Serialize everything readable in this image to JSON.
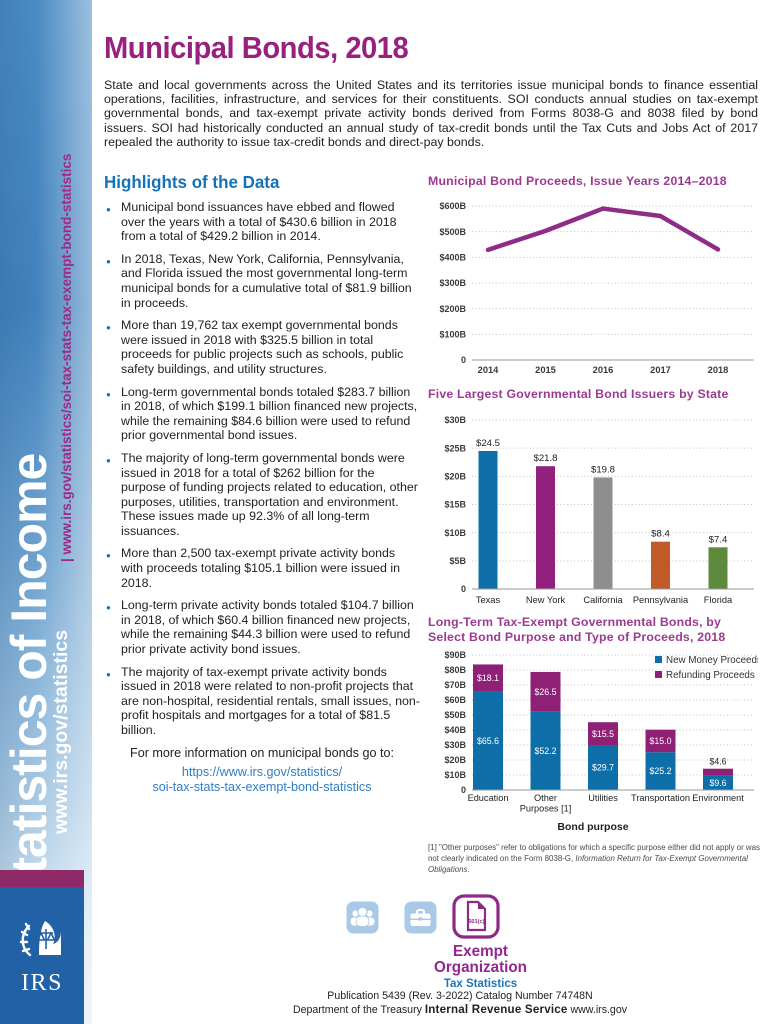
{
  "colors": {
    "title_purple": "#982180",
    "heading_blue": "#1273ba",
    "link_blue": "#2e7ec6",
    "chart_title_purple": "#9c3a92",
    "sidebar_url_purple": "#9c2a86",
    "irs_block_blue": "#2161a6",
    "stripe_maroon": "#8e2a68",
    "icon_light_blue": "#a9c9e6"
  },
  "sidebar": {
    "title": "Statistics of Income",
    "url_primary": "www.irs.gov/statistics",
    "url_secondary": "| www.irs.gov/statistics/soi-tax-stats-tax-exempt-bond-statistics",
    "irs_logo_text": "IRS"
  },
  "header": {
    "title": "Municipal Bonds, 2018",
    "intro": "State and local governments across the United States and its territories issue municipal bonds to finance essential operations, facilities, infrastructure, and services for their constituents.  SOI conducts annual studies on tax-exempt governmental bonds, and tax-exempt private activity bonds derived from Forms 8038-G and 8038 filed by bond issuers. SOI had historically conducted an annual study of tax-credit bonds until the Tax Cuts and Jobs Act of 2017 repealed the authority to issue tax-credit bonds and direct-pay bonds."
  },
  "highlights": {
    "heading": "Highlights of the Data",
    "bullets": [
      "Municipal bond issuances have ebbed and flowed over the years with a total of $430.6 billion in 2018 from a total of $429.2 billion in 2014.",
      "In 2018, Texas, New York, California, Pennsylvania, and Florida issued the most governmental long-term municipal bonds for a cumulative total of $81.9 billion in proceeds.",
      "More than 19,762 tax exempt governmental bonds were issued in 2018 with $325.5 billion in total proceeds for public projects such as schools, public safety buildings, and utility structures.",
      "Long-term governmental bonds totaled $283.7 billion in 2018, of which $199.1 billion financed new projects, while the remaining $84.6 billion were used to refund prior governmental bond issues.",
      "The majority of long-term governmental bonds were issued in 2018 for a total of $262 billion for the purpose of funding projects related to education, other purposes, utilities, transportation and environment. These issues made up 92.3% of all long-term issuances.",
      "More than 2,500 tax-exempt private activity bonds with proceeds totaling $105.1 billion were issued in 2018.",
      "Long-term private activity bonds totaled $104.7 billion in 2018, of which $60.4 billion financed new projects, while the remaining $44.3 billion were used to refund prior private activity bond issues.",
      "The majority of tax-exempt private activity bonds issued in 2018 were related to non-profit projects that are non-hospital, residential rentals, small issues, non-profit hospitals and mortgages for a total of $81.5 billion."
    ],
    "more_info": "For more information on municipal bonds go to:",
    "link_line1": "https://www.irs.gov/statistics/",
    "link_line2": "soi-tax-stats-tax-exempt-bond-statistics"
  },
  "chart_data": [
    {
      "type": "line",
      "title": "Municipal Bond Proceeds, Issue Years 2014–2018",
      "x": [
        "2014",
        "2015",
        "2016",
        "2017",
        "2018"
      ],
      "values": [
        429.2,
        503,
        590,
        561,
        430.6
      ],
      "ylim": [
        0,
        600
      ],
      "ytick_labels": [
        "0",
        "$100B",
        "$200B",
        "$300B",
        "$400B",
        "$500B",
        "$600B"
      ],
      "line_color": "#8e2c87",
      "grid": true,
      "legend_position": "none"
    },
    {
      "type": "bar",
      "title": "Five Largest Governmental Bond Issuers by State",
      "categories": [
        "Texas",
        "New York",
        "California",
        "Pennsylvania",
        "Florida"
      ],
      "values": [
        24.5,
        21.8,
        19.8,
        8.4,
        7.4
      ],
      "value_labels": [
        "$24.5",
        "$21.8",
        "$19.8",
        "$8.4",
        "$7.4"
      ],
      "bar_colors": [
        "#0e6fa8",
        "#92217e",
        "#8e8e8e",
        "#c05a28",
        "#5d8a3d"
      ],
      "ylim": [
        0,
        30
      ],
      "ytick_labels": [
        "0",
        "$5B",
        "$10B",
        "$15B",
        "$20B",
        "$25B",
        "$30B"
      ],
      "grid": true
    },
    {
      "type": "stacked_bar",
      "title_lines": [
        "Long-Term Tax-Exempt Governmental Bonds, by",
        "Select Bond Purpose and Type of Proceeds, 2018"
      ],
      "categories": [
        [
          "Education"
        ],
        [
          "Other",
          "Purposes [1]"
        ],
        [
          "Utilities"
        ],
        [
          "Transportation"
        ],
        [
          "Environment"
        ]
      ],
      "series": [
        {
          "name": "New Money Proceeds",
          "color": "#0e6fa8",
          "values": [
            65.6,
            52.2,
            29.7,
            25.2,
            9.6
          ],
          "labels": [
            "$65.6",
            "$52.2",
            "$29.7",
            "$25.2",
            "$9.6"
          ]
        },
        {
          "name": "Refunding Proceeds",
          "color": "#8e2176",
          "values": [
            18.1,
            26.5,
            15.5,
            15.0,
            4.6
          ],
          "labels": [
            "$18.1",
            "$26.5",
            "$15.5",
            "$15.0",
            "$4.6"
          ]
        }
      ],
      "ylim": [
        0,
        90
      ],
      "ytick_labels": [
        "0",
        "$10B",
        "$20B",
        "$30B",
        "$40B",
        "$50B",
        "$60B",
        "$70B",
        "$80B",
        "$90B"
      ],
      "xlabel": "Bond purpose",
      "legend_position": "top-right",
      "grid": true
    }
  ],
  "footnote": {
    "prefix": "[1] \"Other purposes\" refer to obligations for which a specific purpose either did not apply or was not clearly indicated on the Form 8038-G, ",
    "italic": "Information Return for Tax-Exempt Governmental Obligations",
    "suffix": "."
  },
  "footer": {
    "doc_badge": "501(c)",
    "exempt_line1": "Exempt",
    "exempt_line2": "Organization",
    "tax_statistics": "Tax Statistics",
    "publication_line": "Publication 5439 (Rev. 3-2022)  Catalog Number 74748N",
    "dept_prefix": "Department of the Treasury ",
    "irs_bold": "Internal Revenue Service",
    "site": " www.irs.gov"
  }
}
